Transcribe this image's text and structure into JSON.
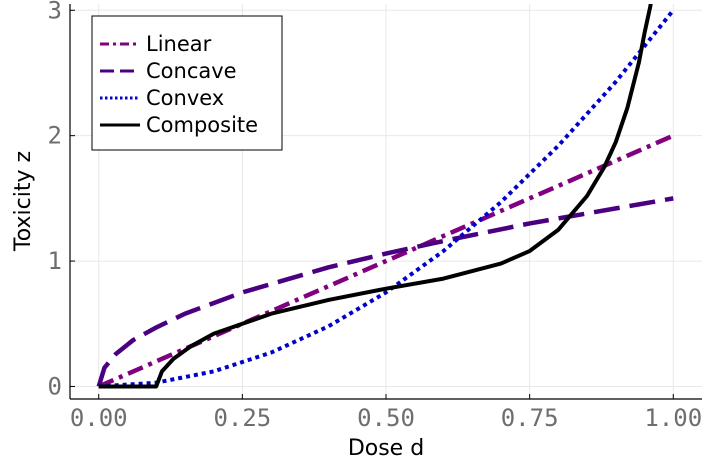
{
  "chart_data": {
    "type": "line",
    "xlabel": "Dose d",
    "ylabel": "Toxicity z",
    "xlim": [
      -0.05,
      1.05
    ],
    "ylim": [
      -0.1,
      3.05
    ],
    "xticks": [
      0,
      0.25,
      0.5,
      0.75,
      1.0
    ],
    "xtick_labels": [
      "0.00",
      "0.25",
      "0.50",
      "0.75",
      "1.00"
    ],
    "yticks": [
      0,
      1,
      2,
      3
    ],
    "ytick_labels": [
      "0",
      "1",
      "2",
      "3"
    ],
    "grid": true,
    "legend_position": "top-left",
    "series": [
      {
        "name": "Linear",
        "color": "#800080",
        "dash": "dashdot",
        "x": [
          0,
          0.25,
          0.5,
          0.75,
          1.0
        ],
        "y": [
          0,
          0.5,
          1.0,
          1.5,
          2.0
        ]
      },
      {
        "name": "Concave",
        "color": "#4b0082",
        "dash": "dash",
        "x": [
          0,
          0.01,
          0.03,
          0.06,
          0.1,
          0.15,
          0.25,
          0.4,
          0.5,
          0.6,
          0.75,
          0.9,
          1.0
        ],
        "y": [
          0,
          0.15,
          0.26,
          0.37,
          0.47,
          0.58,
          0.75,
          0.95,
          1.06,
          1.16,
          1.3,
          1.42,
          1.5
        ]
      },
      {
        "name": "Convex",
        "color": "#0000cd",
        "dash": "dot",
        "x": [
          0,
          0.1,
          0.2,
          0.3,
          0.4,
          0.5,
          0.6,
          0.7,
          0.8,
          0.9,
          1.0
        ],
        "y": [
          0,
          0.03,
          0.12,
          0.27,
          0.48,
          0.75,
          1.08,
          1.47,
          1.92,
          2.43,
          3.0
        ]
      },
      {
        "name": "Composite",
        "color": "#000000",
        "dash": "solid",
        "x": [
          0,
          0.1,
          0.11,
          0.13,
          0.16,
          0.2,
          0.3,
          0.4,
          0.5,
          0.6,
          0.7,
          0.75,
          0.8,
          0.85,
          0.88,
          0.9,
          0.92,
          0.94,
          0.95,
          0.96,
          0.965,
          0.97
        ],
        "y": [
          0,
          0,
          0.12,
          0.22,
          0.32,
          0.42,
          0.58,
          0.69,
          0.78,
          0.86,
          0.98,
          1.08,
          1.25,
          1.52,
          1.75,
          1.95,
          2.22,
          2.58,
          2.82,
          3.03,
          3.2,
          3.4
        ]
      }
    ]
  }
}
